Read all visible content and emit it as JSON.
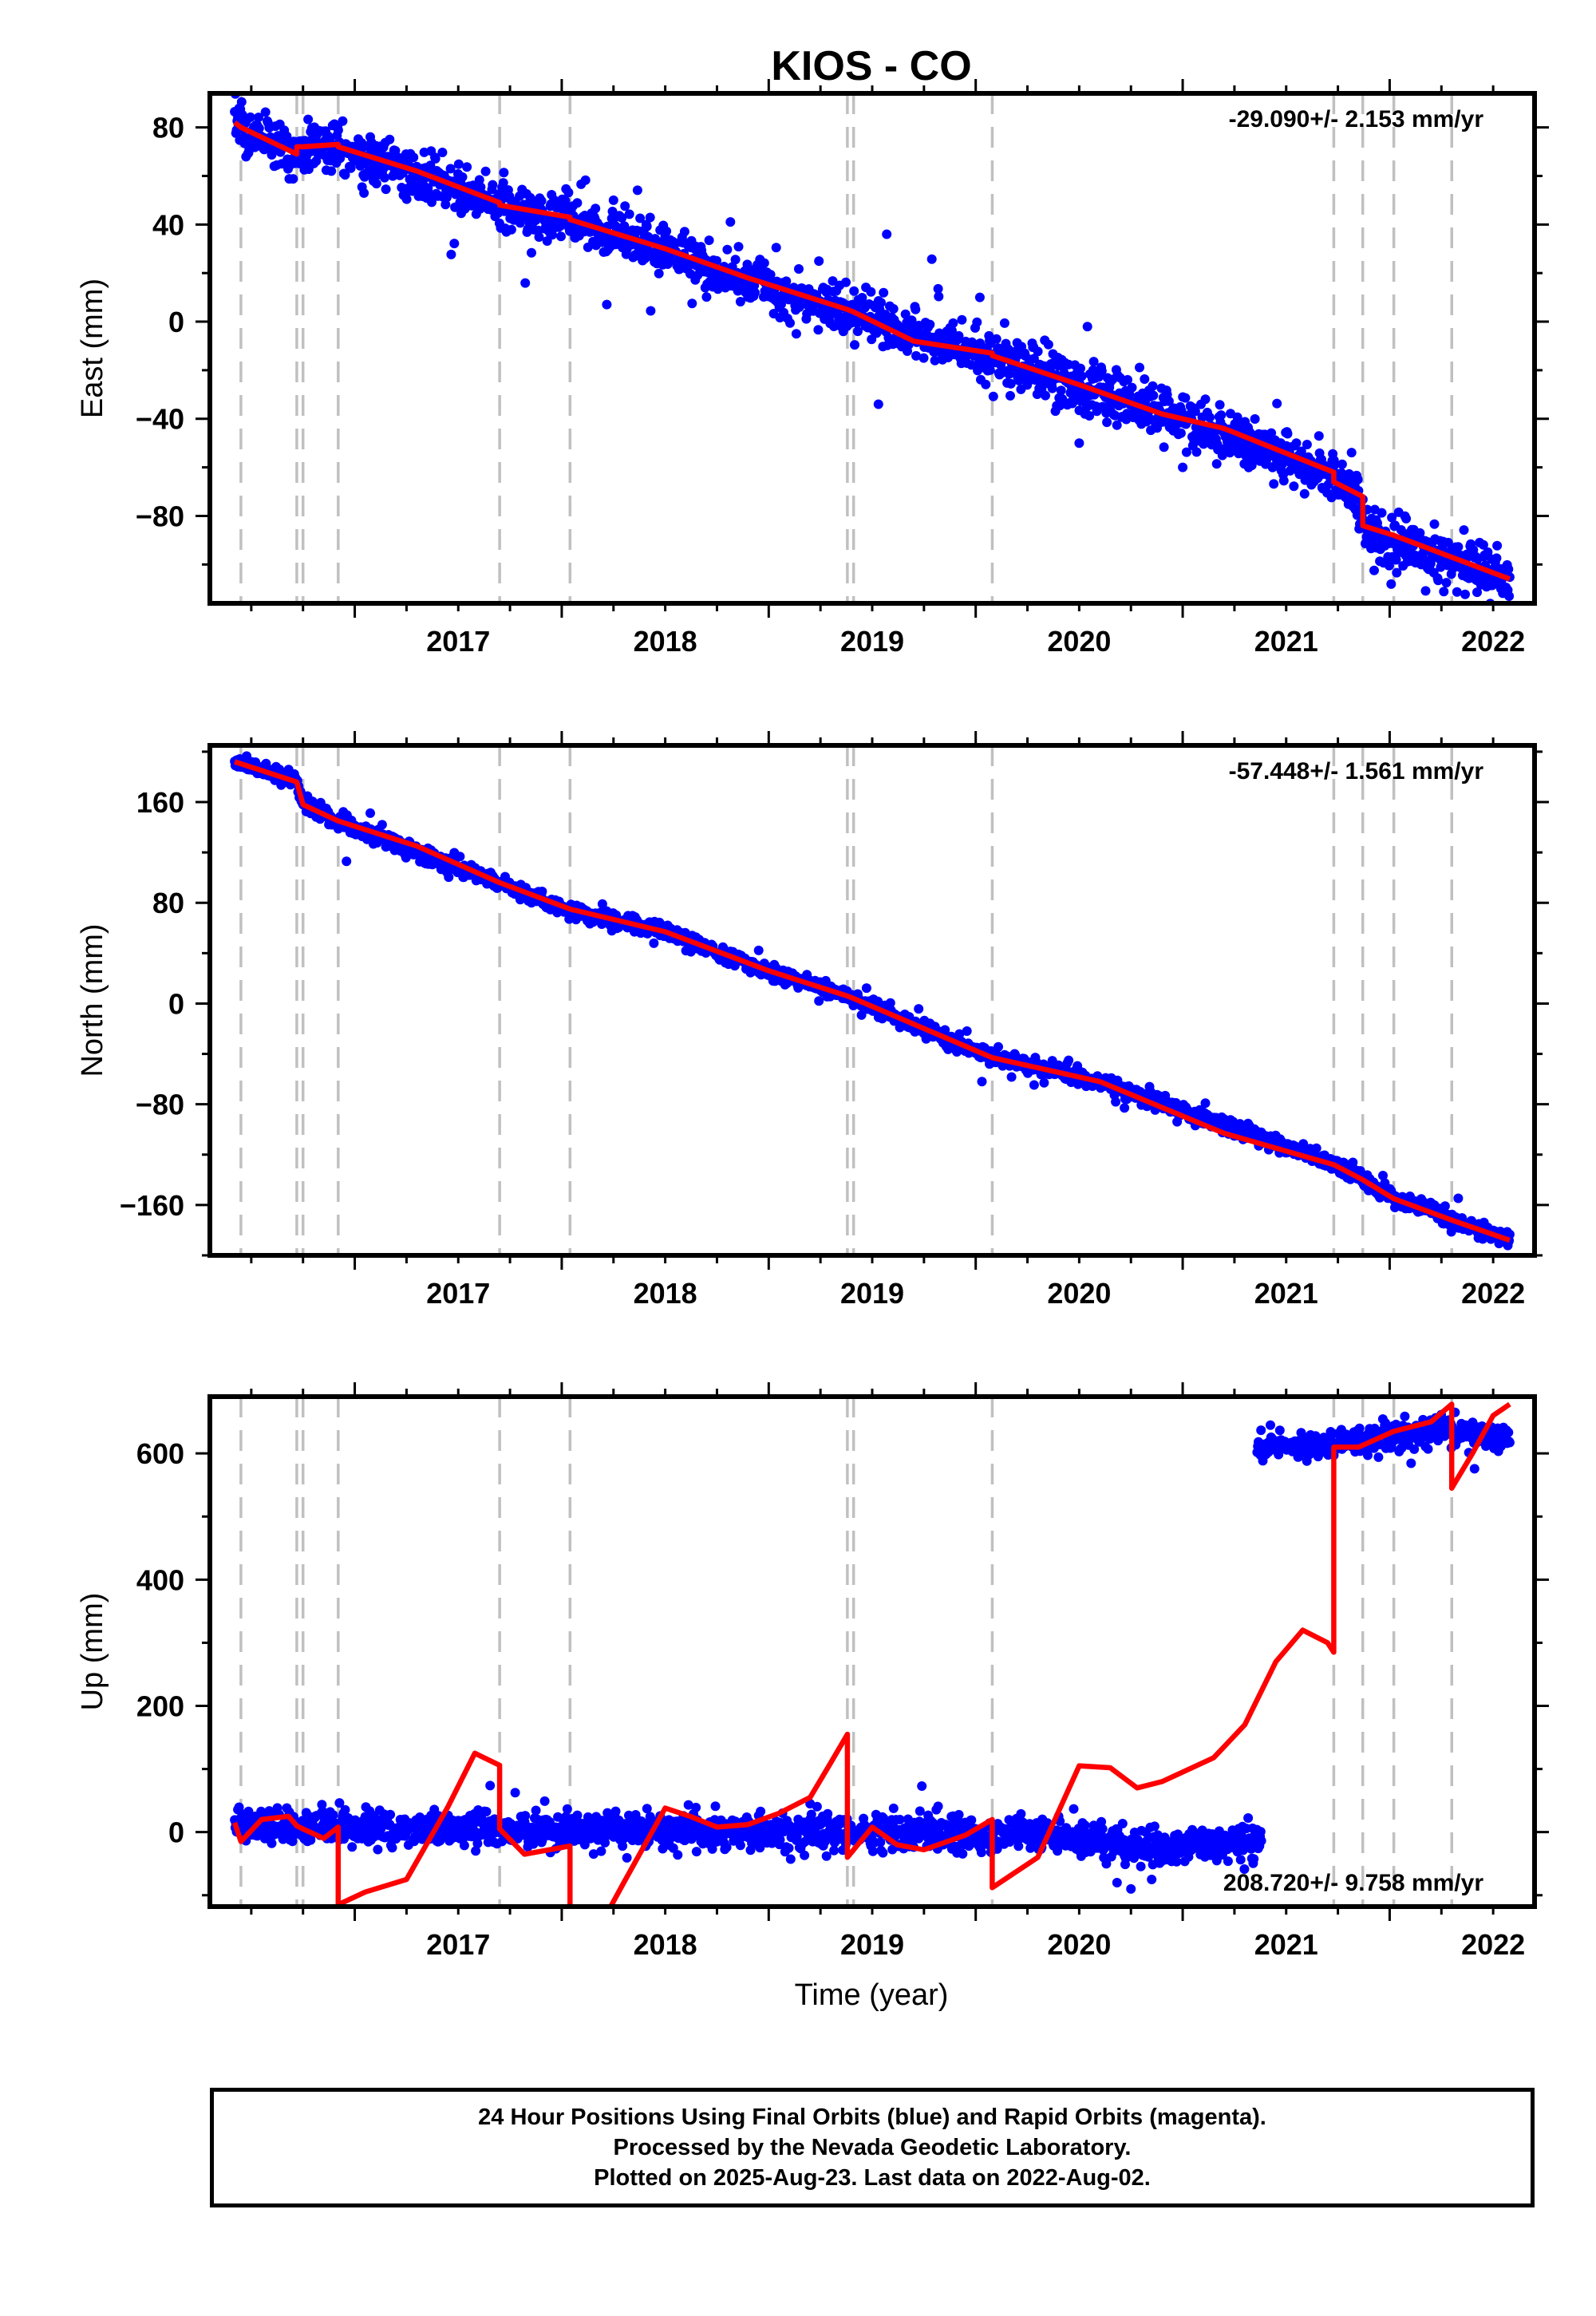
{
  "title": "KIOS - CO",
  "xlabel": "Time (year)",
  "footer": {
    "line1": "24 Hour Positions Using Final Orbits (blue) and Rapid Orbits (magenta).",
    "line2": "Processed by the Nevada Geodetic Laboratory.",
    "line3": "Plotted on 2025-Aug-23. Last data on 2022-Aug-02."
  },
  "colors": {
    "data": "#0000ff",
    "model": "#ff0000",
    "events": "#c0c0c0"
  },
  "chart_data": [
    {
      "type": "scatter",
      "ylabel": "East (mm)",
      "rate_text": "-29.090+/- 2.153 mm/yr",
      "xlim": [
        2016.3,
        2022.7
      ],
      "ylim": [
        -116,
        94
      ],
      "x_ticks": [
        2017,
        2018,
        2019,
        2020,
        2021,
        2022
      ],
      "y_ticks": [
        80,
        40,
        0,
        -40,
        -80
      ],
      "y_tick_labels": [
        "80",
        "40",
        "0",
        "−40",
        "−80"
      ],
      "grid": false,
      "event_lines": [
        2016.45,
        2016.72,
        2016.75,
        2016.92,
        2017.7,
        2018.04,
        2019.38,
        2019.41,
        2020.08,
        2021.73,
        2021.87,
        2022.02,
        2022.3
      ],
      "data_range": [
        2016.42,
        2022.58
      ],
      "data_trend": [
        [
          2016.42,
          81
        ],
        [
          2016.72,
          69
        ],
        [
          2016.73,
          72
        ],
        [
          2016.93,
          72
        ],
        [
          2017.7,
          48
        ],
        [
          2018.04,
          42
        ],
        [
          2018.5,
          30
        ],
        [
          2018.9,
          17
        ],
        [
          2019.38,
          4
        ],
        [
          2020.08,
          -15
        ],
        [
          2020.9,
          -38
        ],
        [
          2021.73,
          -62
        ],
        [
          2021.87,
          -76
        ],
        [
          2021.88,
          -88
        ],
        [
          2022.58,
          -106
        ]
      ],
      "data_noise": 5,
      "data_outliers": [
        [
          2019.57,
          36
        ],
        [
          2019.53,
          -34
        ],
        [
          2020.02,
          10
        ],
        [
          2021.0,
          -60
        ],
        [
          2020.5,
          -50
        ],
        [
          2018.25,
          50
        ]
      ],
      "model": [
        [
          2016.42,
          82
        ],
        [
          2016.45,
          80
        ],
        [
          2016.72,
          69
        ],
        [
          2016.72,
          72
        ],
        [
          2016.75,
          72
        ],
        [
          2016.92,
          73
        ],
        [
          2016.92,
          72
        ],
        [
          2017.3,
          62
        ],
        [
          2017.7,
          49
        ],
        [
          2017.7,
          48
        ],
        [
          2018.04,
          43
        ],
        [
          2018.04,
          42
        ],
        [
          2018.5,
          30
        ],
        [
          2018.9,
          18
        ],
        [
          2019.38,
          5
        ],
        [
          2019.41,
          4
        ],
        [
          2019.7,
          -8
        ],
        [
          2020.08,
          -13
        ],
        [
          2020.08,
          -14
        ],
        [
          2020.5,
          -26
        ],
        [
          2020.9,
          -38
        ],
        [
          2021.2,
          -44
        ],
        [
          2021.73,
          -62
        ],
        [
          2021.73,
          -66
        ],
        [
          2021.87,
          -72
        ],
        [
          2021.87,
          -84
        ],
        [
          2022.02,
          -88
        ],
        [
          2022.3,
          -97
        ],
        [
          2022.58,
          -106
        ]
      ]
    },
    {
      "type": "scatter",
      "ylabel": "North (mm)",
      "rate_text": "-57.448+/- 1.561 mm/yr",
      "xlim": [
        2016.3,
        2022.7
      ],
      "ylim": [
        -200,
        205
      ],
      "x_ticks": [
        2017,
        2018,
        2019,
        2020,
        2021,
        2022
      ],
      "y_ticks": [
        160,
        80,
        0,
        -80,
        -160
      ],
      "y_tick_labels": [
        "160",
        "80",
        "0",
        "−80",
        "−160"
      ],
      "grid": false,
      "event_lines": [
        2016.45,
        2016.72,
        2016.75,
        2016.92,
        2017.7,
        2018.04,
        2019.38,
        2019.41,
        2020.08,
        2021.73,
        2021.87,
        2022.02,
        2022.3
      ],
      "data_range": [
        2016.42,
        2022.58
      ],
      "data_trend": [
        [
          2016.42,
          192
        ],
        [
          2016.72,
          177
        ],
        [
          2016.75,
          158
        ],
        [
          2016.92,
          145
        ],
        [
          2017.7,
          95
        ],
        [
          2018.04,
          74
        ],
        [
          2018.5,
          57
        ],
        [
          2019.0,
          25
        ],
        [
          2019.38,
          6
        ],
        [
          2020.08,
          -43
        ],
        [
          2020.6,
          -62
        ],
        [
          2021.73,
          -127
        ],
        [
          2021.87,
          -140
        ],
        [
          2022.02,
          -155
        ],
        [
          2022.58,
          -188
        ]
      ],
      "data_noise": 3,
      "data_outliers": [
        [
          2016.96,
          113
        ],
        [
          2020.03,
          -62
        ],
        [
          2018.6,
          42
        ],
        [
          2021.4,
          -105
        ]
      ],
      "model": [
        [
          2016.42,
          192
        ],
        [
          2016.72,
          176
        ],
        [
          2016.75,
          158
        ],
        [
          2016.92,
          145
        ],
        [
          2017.3,
          125
        ],
        [
          2017.7,
          96
        ],
        [
          2018.04,
          75
        ],
        [
          2018.5,
          57
        ],
        [
          2019.0,
          26
        ],
        [
          2019.38,
          6
        ],
        [
          2019.41,
          4
        ],
        [
          2020.08,
          -43
        ],
        [
          2020.6,
          -62
        ],
        [
          2021.2,
          -103
        ],
        [
          2021.73,
          -128
        ],
        [
          2021.87,
          -140
        ],
        [
          2022.02,
          -155
        ],
        [
          2022.3,
          -172
        ],
        [
          2022.58,
          -188
        ]
      ]
    },
    {
      "type": "scatter",
      "ylabel": "Up (mm)",
      "rate_text": "208.720+/- 9.758 mm/yr",
      "xlim": [
        2016.3,
        2022.7
      ],
      "ylim": [
        -118,
        690
      ],
      "x_ticks": [
        2017,
        2018,
        2019,
        2020,
        2021,
        2022
      ],
      "y_ticks": [
        600,
        400,
        200,
        0
      ],
      "y_tick_labels": [
        "600",
        "400",
        "200",
        "0"
      ],
      "grid": false,
      "event_lines": [
        2016.45,
        2016.72,
        2016.75,
        2016.92,
        2017.7,
        2018.04,
        2019.38,
        2019.41,
        2020.08,
        2021.73,
        2021.87,
        2022.02,
        2022.3
      ],
      "data_segments": [
        {
          "range": [
            2016.42,
            2021.38
          ],
          "trend": [
            [
              2016.42,
              10
            ],
            [
              2017.5,
              5
            ],
            [
              2018.5,
              0
            ],
            [
              2019.5,
              0
            ],
            [
              2020.3,
              -5
            ],
            [
              2020.8,
              -25
            ],
            [
              2021.38,
              -15
            ]
          ],
          "noise": 13
        },
        {
          "range": [
            2021.36,
            2022.58
          ],
          "trend": [
            [
              2021.36,
              612
            ],
            [
              2021.7,
              610
            ],
            [
              2022.0,
              625
            ],
            [
              2022.2,
              640
            ],
            [
              2022.58,
              620
            ]
          ],
          "noise": 10
        }
      ],
      "data_outliers": [
        [
          2020.75,
          -90
        ],
        [
          2020.85,
          -75
        ],
        [
          2019.2,
          45
        ],
        [
          2021.6,
          588
        ]
      ],
      "model": [
        [
          2016.42,
          15
        ],
        [
          2016.45,
          -15
        ],
        [
          2016.55,
          20
        ],
        [
          2016.68,
          25
        ],
        [
          2016.72,
          10
        ],
        [
          2016.75,
          5
        ],
        [
          2016.85,
          -10
        ],
        [
          2016.92,
          8
        ],
        [
          2016.92,
          -115
        ],
        [
          2017.05,
          -95
        ],
        [
          2017.25,
          -75
        ],
        [
          2017.45,
          40
        ],
        [
          2017.58,
          125
        ],
        [
          2017.7,
          106
        ],
        [
          2017.7,
          5
        ],
        [
          2017.82,
          -35
        ],
        [
          2018.04,
          -22
        ],
        [
          2018.04,
          -140
        ],
        [
          2018.2,
          -140
        ],
        [
          2018.3,
          -80
        ],
        [
          2018.5,
          38
        ],
        [
          2018.62,
          25
        ],
        [
          2018.75,
          8
        ],
        [
          2018.9,
          12
        ],
        [
          2019.05,
          30
        ],
        [
          2019.2,
          55
        ],
        [
          2019.3,
          110
        ],
        [
          2019.38,
          155
        ],
        [
          2019.38,
          -40
        ],
        [
          2019.5,
          8
        ],
        [
          2019.62,
          -20
        ],
        [
          2019.75,
          -28
        ],
        [
          2019.95,
          -5
        ],
        [
          2020.08,
          20
        ],
        [
          2020.08,
          -88
        ],
        [
          2020.3,
          -40
        ],
        [
          2020.5,
          105
        ],
        [
          2020.65,
          102
        ],
        [
          2020.78,
          70
        ],
        [
          2020.9,
          80
        ],
        [
          2021.15,
          118
        ],
        [
          2021.3,
          170
        ],
        [
          2021.45,
          270
        ],
        [
          2021.58,
          320
        ],
        [
          2021.7,
          300
        ],
        [
          2021.73,
          285
        ],
        [
          2021.73,
          610
        ],
        [
          2021.85,
          610
        ],
        [
          2022.02,
          635
        ],
        [
          2022.2,
          650
        ],
        [
          2022.3,
          678
        ],
        [
          2022.3,
          545
        ],
        [
          2022.4,
          600
        ],
        [
          2022.5,
          660
        ],
        [
          2022.58,
          678
        ]
      ]
    }
  ]
}
